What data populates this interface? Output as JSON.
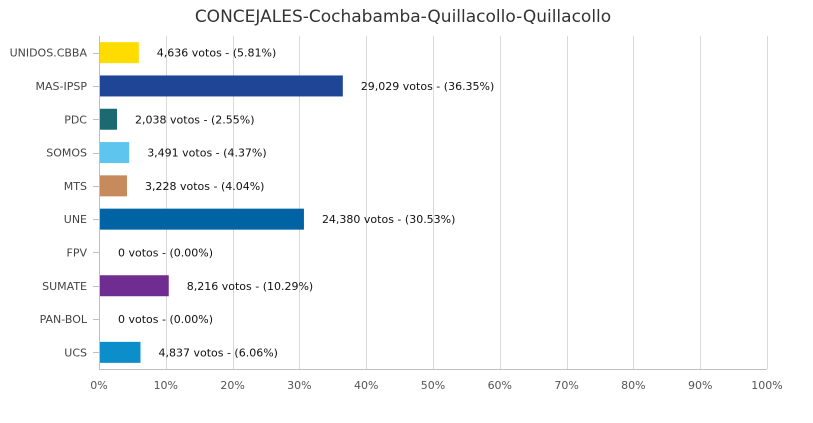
{
  "chart_data": {
    "type": "bar",
    "orientation": "horizontal",
    "title": "CONCEJALES-Cochabamba-Quillacollo-Quillacollo",
    "xlim": [
      0,
      100
    ],
    "x_ticks": [
      "0%",
      "10%",
      "20%",
      "30%",
      "40%",
      "50%",
      "60%",
      "70%",
      "80%",
      "90%",
      "100%"
    ],
    "grid": true,
    "legend": "none",
    "categories": [
      "UNIDOS.CBBA",
      "MAS-IPSP",
      "PDC",
      "SOMOS",
      "MTS",
      "UNE",
      "FPV",
      "SUMATE",
      "PAN-BOL",
      "UCS"
    ],
    "values": [
      5.81,
      36.35,
      2.55,
      4.37,
      4.04,
      30.53,
      0.0,
      10.29,
      0.0,
      6.06
    ],
    "votes": [
      4636,
      29029,
      2038,
      3491,
      3228,
      24380,
      0,
      8216,
      0,
      4837
    ],
    "data_labels": [
      "4,636 votos - (5.81%)",
      "29,029 votos - (36.35%)",
      "2,038 votos - (2.55%)",
      "3,491 votos - (4.37%)",
      "3,228 votos - (4.04%)",
      "24,380 votos - (30.53%)",
      "0 votos - (0.00%)",
      "8,216 votos - (10.29%)",
      "0 votos - (0.00%)",
      "4,837 votos - (6.06%)"
    ],
    "colors": [
      "#ffdc00",
      "#1f4596",
      "#1b6a72",
      "#5ec6ee",
      "#c68a5c",
      "#0064a4",
      "#ffffff",
      "#6f2c91",
      "#ffffff",
      "#0b8ec9"
    ]
  }
}
